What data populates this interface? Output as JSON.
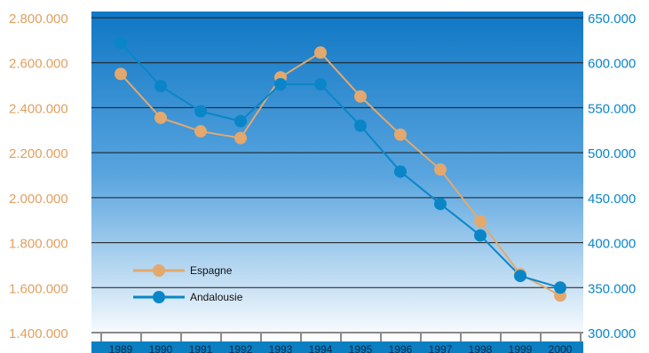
{
  "chart_data": {
    "type": "line",
    "title": "",
    "xlabel": "",
    "ylabel_left": "",
    "ylabel_right": "",
    "categories": [
      "1989",
      "1990",
      "1991",
      "1992",
      "1993",
      "1994",
      "1995",
      "1996",
      "1997",
      "1998",
      "1999",
      "2000"
    ],
    "y_left": {
      "range": [
        1400000,
        2800000
      ],
      "ticks": [
        1400000,
        1600000,
        1800000,
        2000000,
        2200000,
        2400000,
        2600000,
        2800000
      ],
      "tick_labels": [
        "1.400.000",
        "1.600.000",
        "1.800.000",
        "2.000.000",
        "2.200.000",
        "2.400.000",
        "2.600.000",
        "2.800.000"
      ]
    },
    "y_right": {
      "range": [
        300000,
        650000
      ],
      "ticks": [
        300000,
        350000,
        400000,
        450000,
        500000,
        550000,
        600000,
        650000
      ],
      "tick_labels": [
        "300.000",
        "350.000",
        "400.000",
        "450.000",
        "500.000",
        "550.000",
        "600.000",
        "650.000"
      ]
    },
    "series": [
      {
        "name": "Espagne",
        "axis": "left",
        "color": "#e2a86e",
        "values": [
          2550000,
          2355000,
          2295000,
          2265000,
          2535000,
          2645000,
          2450000,
          2280000,
          2125000,
          1895000,
          1660000,
          1565000
        ]
      },
      {
        "name": "Andalousie",
        "axis": "right",
        "color": "#0a86c8",
        "values": [
          622000,
          574000,
          546000,
          535000,
          576000,
          576000,
          530000,
          479000,
          443000,
          408000,
          363000,
          350000
        ]
      }
    ],
    "grid": true,
    "legend_position": "bottom-left"
  }
}
